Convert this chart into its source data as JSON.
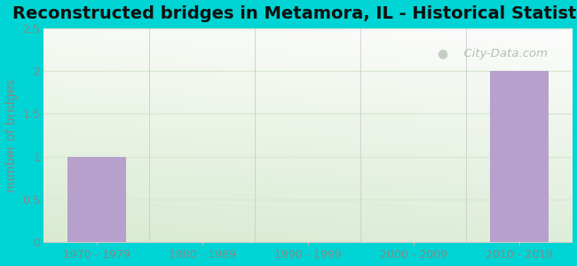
{
  "title": "Reconstructed bridges in Metamora, IL - Historical Statistics",
  "categories": [
    "1970 - 1979",
    "1980 - 1989",
    "1990 - 1999",
    "2000 - 2009",
    "2010 - 2019"
  ],
  "values": [
    1,
    0,
    0,
    0,
    2
  ],
  "bar_color": "#b8a0cc",
  "ylabel": "number of bridges",
  "ylim": [
    0,
    2.5
  ],
  "yticks": [
    0,
    0.5,
    1,
    1.5,
    2,
    2.5
  ],
  "title_fontsize": 14,
  "ylabel_fontsize": 10,
  "tick_fontsize": 9,
  "background_outer": "#00d4d4",
  "grid_color": "#d8e8d0",
  "watermark_text": "  City-Data.com",
  "watermark_color": "#aabcaa",
  "tick_color": "#888888",
  "bar_width": 0.55
}
